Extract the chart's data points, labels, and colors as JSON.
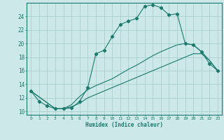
{
  "xlabel": "Humidex (Indice chaleur)",
  "ylabel": "",
  "background_color": "#cce8e8",
  "line_color": "#1a7a6e",
  "grid_color": "#aacfcf",
  "xlim": [
    -0.5,
    23.5
  ],
  "ylim": [
    9.5,
    26.0
  ],
  "xticks": [
    0,
    1,
    2,
    3,
    4,
    5,
    6,
    7,
    8,
    9,
    10,
    11,
    12,
    13,
    14,
    15,
    16,
    17,
    18,
    19,
    20,
    21,
    22,
    23
  ],
  "yticks": [
    10,
    12,
    14,
    16,
    18,
    20,
    22,
    24
  ],
  "line1_x": [
    0,
    1,
    2,
    3,
    4,
    5,
    6,
    7,
    8,
    9,
    10,
    11,
    12,
    13,
    14,
    15,
    16,
    17,
    18,
    19,
    20,
    21,
    22,
    23
  ],
  "line1_y": [
    13,
    11.5,
    10.8,
    10.4,
    10.4,
    10.5,
    11.5,
    13.5,
    18.5,
    19.0,
    21.0,
    22.8,
    23.3,
    23.7,
    25.5,
    25.7,
    25.3,
    24.2,
    24.4,
    20.0,
    19.8,
    18.8,
    17.0,
    16.0
  ],
  "line2_x": [
    0,
    3,
    4,
    5,
    6,
    7,
    8,
    9,
    10,
    11,
    12,
    13,
    14,
    15,
    16,
    17,
    18,
    19,
    20,
    21,
    22,
    23
  ],
  "line2_y": [
    13.0,
    10.4,
    10.4,
    11.0,
    12.2,
    13.2,
    13.8,
    14.3,
    14.8,
    15.5,
    16.2,
    16.8,
    17.5,
    18.2,
    18.8,
    19.3,
    19.8,
    20.0,
    19.8,
    18.8,
    17.5,
    16.0
  ],
  "line3_x": [
    0,
    3,
    4,
    5,
    6,
    7,
    8,
    9,
    10,
    11,
    12,
    13,
    14,
    15,
    16,
    17,
    18,
    19,
    20,
    21,
    22,
    23
  ],
  "line3_y": [
    13.0,
    10.4,
    10.4,
    10.7,
    11.2,
    12.0,
    12.5,
    13.0,
    13.5,
    14.0,
    14.5,
    15.0,
    15.5,
    16.0,
    16.5,
    17.0,
    17.5,
    18.0,
    18.5,
    18.5,
    17.5,
    16.0
  ]
}
